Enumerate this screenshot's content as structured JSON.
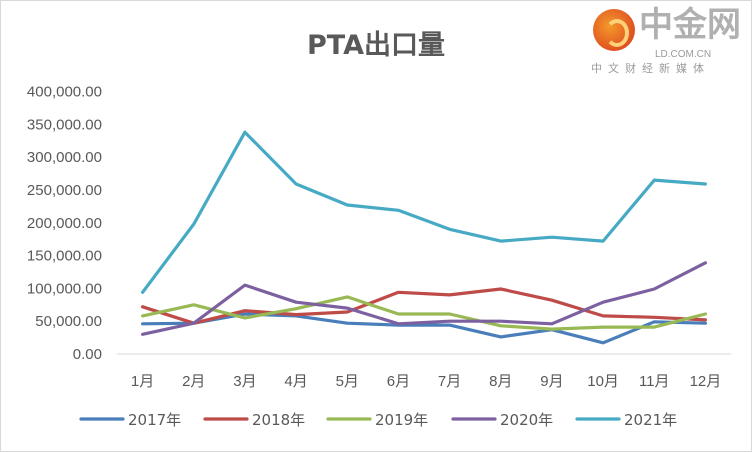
{
  "chart_data": {
    "type": "line",
    "title": "PTA出口量",
    "categories": [
      "1月",
      "2月",
      "3月",
      "4月",
      "5月",
      "6月",
      "7月",
      "8月",
      "9月",
      "10月",
      "11月",
      "12月"
    ],
    "ylim": [
      0,
      400000
    ],
    "yticks": [
      0,
      50000,
      100000,
      150000,
      200000,
      250000,
      300000,
      350000,
      400000
    ],
    "ytick_labels": [
      "0.00",
      "50,000.00",
      "100,000.00",
      "150,000.00",
      "200,000.00",
      "250,000.00",
      "300,000.00",
      "350,000.00",
      "400,000.00"
    ],
    "grid": false,
    "legend": "bottom",
    "series": [
      {
        "name": "2017年",
        "color": "#4a7ebb",
        "values": [
          46000,
          47000,
          61000,
          58000,
          47000,
          44000,
          44000,
          26000,
          37000,
          17000,
          49000,
          47000
        ]
      },
      {
        "name": "2018年",
        "color": "#be4b48",
        "values": [
          72000,
          47000,
          66000,
          60000,
          64000,
          94000,
          90000,
          99000,
          82000,
          58000,
          56000,
          52000
        ]
      },
      {
        "name": "2019年",
        "color": "#98b954",
        "values": [
          58000,
          75000,
          55000,
          69000,
          87000,
          61000,
          61000,
          43000,
          38000,
          41000,
          41000,
          61000
        ]
      },
      {
        "name": "2020年",
        "color": "#7d60a0",
        "values": [
          30000,
          47000,
          105000,
          79000,
          70000,
          46000,
          50000,
          50000,
          46000,
          79000,
          99000,
          139000
        ]
      },
      {
        "name": "2021年",
        "color": "#46aac5",
        "values": [
          94000,
          198000,
          338000,
          259000,
          227000,
          219000,
          190000,
          172000,
          178000,
          172000,
          265000,
          259000
        ]
      }
    ]
  },
  "watermark": {
    "name": "中金网",
    "url": "LD.COM.CN",
    "slogan": "中文财经新媒体"
  }
}
